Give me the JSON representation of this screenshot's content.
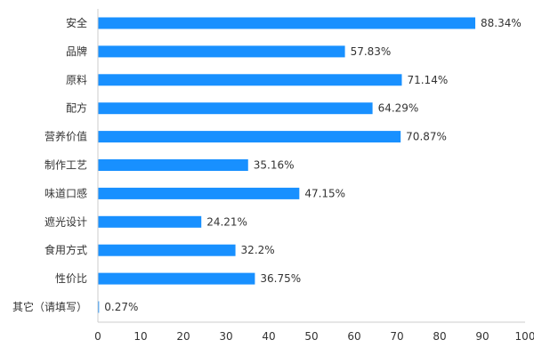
{
  "chart_data": {
    "type": "bar",
    "orientation": "horizontal",
    "categories": [
      "安全",
      "品牌",
      "原料",
      "配方",
      "营养价值",
      "制作工艺",
      "味道口感",
      "遮光设计",
      "食用方式",
      "性价比",
      "其它（请填写）"
    ],
    "values": [
      88.34,
      57.83,
      71.14,
      64.29,
      70.87,
      35.16,
      47.15,
      24.21,
      32.2,
      36.75,
      0.27
    ],
    "value_labels": [
      "88.34%",
      "57.83%",
      "71.14%",
      "64.29%",
      "70.87%",
      "35.16%",
      "47.15%",
      "24.21%",
      "32.2%",
      "36.75%",
      "0.27%"
    ],
    "xlim": [
      0,
      100
    ],
    "xticks": [
      0,
      10,
      20,
      30,
      40,
      50,
      60,
      70,
      80,
      90,
      100
    ],
    "bar_color": "#1890ff",
    "grid": false,
    "title": "",
    "xlabel": "",
    "ylabel": ""
  }
}
